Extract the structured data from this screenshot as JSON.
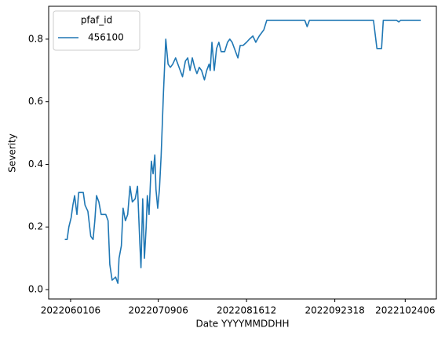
{
  "chart_data": {
    "type": "line",
    "xlabel": "Date YYYYMMDDHH",
    "ylabel": "Severity",
    "legend": {
      "title": "pfaf_id",
      "corner": "upper left"
    },
    "x": [
      "2022052918",
      "2022053018",
      "2022053112",
      "2022060112",
      "2022060206",
      "2022060300",
      "2022060400",
      "2022060418",
      "2022060618",
      "2022060712",
      "2022060818",
      "2022061000",
      "2022061100",
      "2022061118",
      "2022061212",
      "2022061312",
      "2022061412",
      "2022061612",
      "2022061712",
      "2022061806",
      "2022061906",
      "2022062018",
      "2022062118",
      "2022062206",
      "2022062306",
      "2022062400",
      "2022062500",
      "2022062600",
      "2022062700",
      "2022062800",
      "2022062906",
      "2022063006",
      "2022070106",
      "2022070118",
      "2022070212",
      "2022070306",
      "2022070400",
      "2022070412",
      "2022070506",
      "2022070606",
      "2022070700",
      "2022070718",
      "2022070806",
      "2022070900",
      "2022070918",
      "2022071012",
      "2022071112",
      "2022071212",
      "2022071312",
      "2022071412",
      "2022071512",
      "2022071618",
      "2022071718",
      "2022071818",
      "2022071918",
      "2022072100",
      "2022072200",
      "2022072300",
      "2022072400",
      "2022072500",
      "2022072600",
      "2022072700",
      "2022072800",
      "2022072906",
      "2022073006",
      "2022073106",
      "2022073118",
      "2022080112",
      "2022080212",
      "2022080312",
      "2022080412",
      "2022080512",
      "2022080700",
      "2022080806",
      "2022080906",
      "2022081006",
      "2022081118",
      "2022081218",
      "2022081318",
      "2022081500",
      "2022081612",
      "2022081718",
      "2022081906",
      "2022082012",
      "2022082200",
      "2022082400",
      "2022082506",
      "2022082700",
      "2022091018",
      "2022091118",
      "2022091218",
      "2022101012",
      "2022101200",
      "2022101400",
      "2022101418",
      "2022102012",
      "2022102112",
      "2022102206",
      "2022103100"
    ],
    "series": [
      {
        "name": "456100",
        "color": "#1f77b4",
        "values": [
          0.16,
          0.16,
          0.2,
          0.23,
          0.27,
          0.3,
          0.24,
          0.31,
          0.31,
          0.27,
          0.25,
          0.17,
          0.16,
          0.22,
          0.3,
          0.28,
          0.24,
          0.24,
          0.22,
          0.08,
          0.03,
          0.04,
          0.02,
          0.1,
          0.14,
          0.26,
          0.22,
          0.24,
          0.33,
          0.28,
          0.29,
          0.33,
          0.15,
          0.07,
          0.29,
          0.1,
          0.2,
          0.3,
          0.24,
          0.41,
          0.37,
          0.43,
          0.32,
          0.26,
          0.32,
          0.43,
          0.63,
          0.8,
          0.72,
          0.71,
          0.72,
          0.74,
          0.72,
          0.7,
          0.68,
          0.73,
          0.74,
          0.7,
          0.74,
          0.71,
          0.69,
          0.71,
          0.7,
          0.67,
          0.7,
          0.72,
          0.7,
          0.79,
          0.7,
          0.77,
          0.79,
          0.76,
          0.76,
          0.79,
          0.8,
          0.79,
          0.76,
          0.74,
          0.78,
          0.78,
          0.79,
          0.8,
          0.81,
          0.79,
          0.81,
          0.83,
          0.86,
          0.86,
          0.86,
          0.84,
          0.86,
          0.86,
          0.77,
          0.77,
          0.86,
          0.86,
          0.855,
          0.86,
          0.86
        ]
      }
    ],
    "xlim": [
      "2022052218",
      "2022110618"
    ],
    "xticks": [
      "2022060106",
      "2022070906",
      "2022081612",
      "2022092318",
      "2022102406"
    ],
    "ylim": [
      -0.03,
      0.905
    ],
    "yticks": [
      {
        "value": 0,
        "label": "0.0"
      },
      0.2,
      0.4,
      0.6,
      0.8
    ],
    "grid": false
  }
}
